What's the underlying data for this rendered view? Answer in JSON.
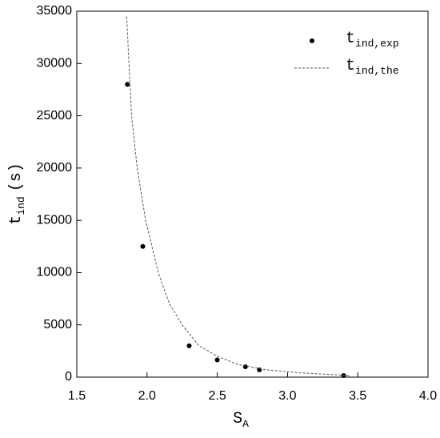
{
  "chart_data": {
    "type": "scatter",
    "x_label": {
      "main": "S",
      "sub": "A"
    },
    "y_label": {
      "main": "t",
      "sub": "ind",
      "tail": "(s)"
    },
    "xlim": [
      1.5,
      4.0
    ],
    "xticks": [
      1.5,
      {
        "value": 2,
        "label": "2.0"
      },
      2.5,
      {
        "value": 3,
        "label": "3.0"
      },
      3.5,
      {
        "value": 4,
        "label": "4.0"
      }
    ],
    "ylim": [
      0,
      35000
    ],
    "yticks": [
      0,
      5000,
      10000,
      15000,
      20000,
      25000,
      30000,
      35000
    ],
    "legend": "top-right",
    "series": [
      {
        "name": {
          "main": "t",
          "sub": "ind,exp"
        },
        "color": "#000000",
        "style": "markers",
        "x": [
          1.86,
          1.97,
          2.3,
          2.5,
          2.7,
          2.8,
          3.4
        ],
        "values": [
          28000,
          12500,
          3000,
          1650,
          1000,
          700,
          150
        ]
      },
      {
        "name": {
          "main": "t",
          "sub": "ind,the"
        },
        "color": "#555555",
        "style": "dashed",
        "x": [
          1.855,
          1.89,
          1.93,
          1.99,
          2.08,
          2.16,
          2.25,
          2.37,
          2.5,
          2.65,
          2.85,
          3.1,
          3.45
        ],
        "values": [
          34500,
          25000,
          20000,
          15000,
          10000,
          7000,
          5000,
          3000,
          2000,
          1200,
          700,
          400,
          150
        ]
      }
    ]
  }
}
